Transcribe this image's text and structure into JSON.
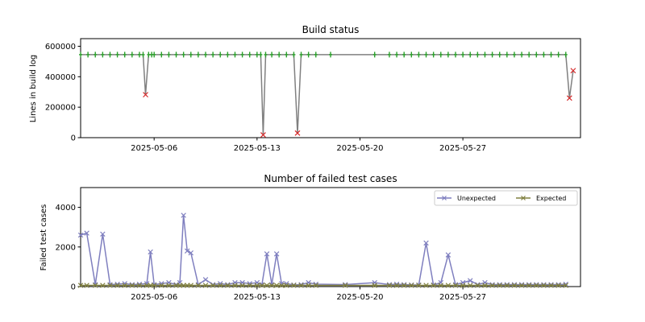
{
  "chart_data": [
    {
      "type": "line",
      "title": "Build status",
      "xlabel": "",
      "ylabel": "Lines in build log",
      "ylim": [
        0,
        650000
      ],
      "xlim": [
        "2025-05-01",
        "2025-06-04"
      ],
      "x_ticks": [
        "2025-05-06",
        "2025-05-13",
        "2025-05-20",
        "2025-05-27"
      ],
      "y_ticks": [
        "0",
        "200000",
        "400000",
        "600000"
      ],
      "grid": false,
      "colors": {
        "line": "#808080",
        "success": "#2ca02c",
        "failure": "#d62728"
      },
      "series": [
        {
          "x": [
            "2025-05-01",
            "2025-05-01T12",
            "2025-05-02",
            "2025-05-02T12",
            "2025-05-03",
            "2025-05-03T12",
            "2025-05-04",
            "2025-05-04T12",
            "2025-05-05",
            "2025-05-05T06",
            "2025-05-05T10",
            "2025-05-05T15",
            "2025-05-05T20",
            "2025-05-06",
            "2025-05-06T12",
            "2025-05-07",
            "2025-05-07T12",
            "2025-05-08",
            "2025-05-08T12",
            "2025-05-09",
            "2025-05-09T12",
            "2025-05-10",
            "2025-05-10T12",
            "2025-05-11",
            "2025-05-11T12",
            "2025-05-12",
            "2025-05-12T12",
            "2025-05-13",
            "2025-05-13T06",
            "2025-05-13T10",
            "2025-05-13T14",
            "2025-05-14",
            "2025-05-14T12",
            "2025-05-15",
            "2025-05-15T12",
            "2025-05-15T18",
            "2025-05-16",
            "2025-05-16T12",
            "2025-05-17",
            "2025-05-18",
            "2025-05-21",
            "2025-05-22",
            "2025-05-22T12",
            "2025-05-23",
            "2025-05-23T12",
            "2025-05-24",
            "2025-05-24T12",
            "2025-05-25",
            "2025-05-25T12",
            "2025-05-26",
            "2025-05-26T12",
            "2025-05-27",
            "2025-05-27T12",
            "2025-05-28",
            "2025-05-28T12",
            "2025-05-29",
            "2025-05-29T12",
            "2025-05-30",
            "2025-05-30T12",
            "2025-05-31",
            "2025-05-31T12",
            "2025-06-01",
            "2025-06-01T12",
            "2025-06-02",
            "2025-06-02T12",
            "2025-06-03",
            "2025-06-03T06",
            "2025-06-03T12"
          ],
          "y": [
            545000,
            545000,
            545000,
            545000,
            545000,
            545000,
            545000,
            545000,
            545000,
            545000,
            282000,
            545000,
            545000,
            545000,
            545000,
            545000,
            545000,
            545000,
            545000,
            545000,
            545000,
            545000,
            545000,
            545000,
            545000,
            545000,
            545000,
            545000,
            545000,
            18000,
            545000,
            545000,
            545000,
            545000,
            545000,
            30000,
            545000,
            545000,
            545000,
            545000,
            545000,
            545000,
            545000,
            545000,
            545000,
            545000,
            545000,
            545000,
            545000,
            545000,
            545000,
            545000,
            545000,
            545000,
            545000,
            545000,
            545000,
            545000,
            545000,
            545000,
            545000,
            545000,
            545000,
            545000,
            545000,
            545000,
            260000,
            440000
          ],
          "status": [
            "ok",
            "ok",
            "ok",
            "ok",
            "ok",
            "ok",
            "ok",
            "ok",
            "ok",
            "ok",
            "fail",
            "ok",
            "ok",
            "ok",
            "ok",
            "ok",
            "ok",
            "ok",
            "ok",
            "ok",
            "ok",
            "ok",
            "ok",
            "ok",
            "ok",
            "ok",
            "ok",
            "ok",
            "ok",
            "fail",
            "ok",
            "ok",
            "ok",
            "ok",
            "ok",
            "fail",
            "ok",
            "ok",
            "ok",
            "ok",
            "ok",
            "ok",
            "ok",
            "ok",
            "ok",
            "ok",
            "ok",
            "ok",
            "ok",
            "ok",
            "ok",
            "ok",
            "ok",
            "ok",
            "ok",
            "ok",
            "ok",
            "ok",
            "ok",
            "ok",
            "ok",
            "ok",
            "ok",
            "ok",
            "ok",
            "ok",
            "fail",
            "fail"
          ]
        }
      ]
    },
    {
      "type": "line",
      "title": "Number of failed test cases",
      "xlabel": "",
      "ylabel": "Failed test cases",
      "ylim": [
        0,
        5000
      ],
      "xlim": [
        "2025-05-01",
        "2025-06-04"
      ],
      "x_ticks": [
        "2025-05-06",
        "2025-05-13",
        "2025-05-20",
        "2025-05-27"
      ],
      "y_ticks": [
        "0",
        "2000",
        "4000"
      ],
      "grid": false,
      "legend": "top-right",
      "categories": [
        "2025-05-01",
        "2025-05-01T10",
        "2025-05-02",
        "2025-05-02T12",
        "2025-05-03",
        "2025-05-03T12",
        "2025-05-04",
        "2025-05-04T12",
        "2025-05-05",
        "2025-05-05T12",
        "2025-05-05T18",
        "2025-05-06",
        "2025-05-06T12",
        "2025-05-07",
        "2025-05-07T12",
        "2025-05-07T18",
        "2025-05-08",
        "2025-05-08T06",
        "2025-05-08T12",
        "2025-05-09",
        "2025-05-09T12",
        "2025-05-10",
        "2025-05-10T12",
        "2025-05-11",
        "2025-05-11T12",
        "2025-05-12",
        "2025-05-12T12",
        "2025-05-13",
        "2025-05-13T08",
        "2025-05-13T16",
        "2025-05-14",
        "2025-05-14T08",
        "2025-05-14T16",
        "2025-05-15",
        "2025-05-15T12",
        "2025-05-16",
        "2025-05-16T12",
        "2025-05-17",
        "2025-05-19",
        "2025-05-21",
        "2025-05-22",
        "2025-05-22T12",
        "2025-05-23",
        "2025-05-23T12",
        "2025-05-24",
        "2025-05-24T12",
        "2025-05-25",
        "2025-05-25T12",
        "2025-05-26",
        "2025-05-26T12",
        "2025-05-27",
        "2025-05-27T12",
        "2025-05-28",
        "2025-05-28T12",
        "2025-05-29",
        "2025-05-29T12",
        "2025-05-30",
        "2025-05-30T12",
        "2025-05-31",
        "2025-05-31T12",
        "2025-06-01",
        "2025-06-01T12",
        "2025-06-02",
        "2025-06-02T12",
        "2025-06-03"
      ],
      "series": [
        {
          "name": "Unexpected",
          "color": "#7f7fbf",
          "values": [
            2600,
            2700,
            100,
            2650,
            100,
            120,
            150,
            100,
            120,
            150,
            1750,
            100,
            150,
            200,
            100,
            200,
            3600,
            1800,
            1700,
            100,
            350,
            100,
            150,
            100,
            200,
            200,
            150,
            200,
            100,
            1650,
            100,
            1650,
            150,
            150,
            80,
            100,
            200,
            120,
            100,
            200,
            100,
            120,
            100,
            80,
            80,
            2200,
            80,
            200,
            1600,
            100,
            200,
            300,
            100,
            200,
            100,
            100,
            100,
            100,
            100,
            100,
            100,
            100,
            100,
            100,
            120
          ],
          "marker": "x"
        },
        {
          "name": "Expected",
          "color": "#808040",
          "values": [
            60,
            60,
            60,
            60,
            60,
            60,
            60,
            60,
            60,
            60,
            60,
            60,
            60,
            60,
            60,
            60,
            60,
            60,
            60,
            60,
            60,
            60,
            60,
            60,
            60,
            60,
            60,
            60,
            60,
            60,
            60,
            60,
            60,
            60,
            60,
            60,
            60,
            60,
            60,
            60,
            60,
            60,
            60,
            60,
            60,
            60,
            60,
            60,
            60,
            60,
            60,
            60,
            60,
            60,
            60,
            60,
            60,
            60,
            60,
            60,
            60,
            60,
            60,
            60,
            60
          ],
          "marker": "x"
        }
      ]
    }
  ]
}
